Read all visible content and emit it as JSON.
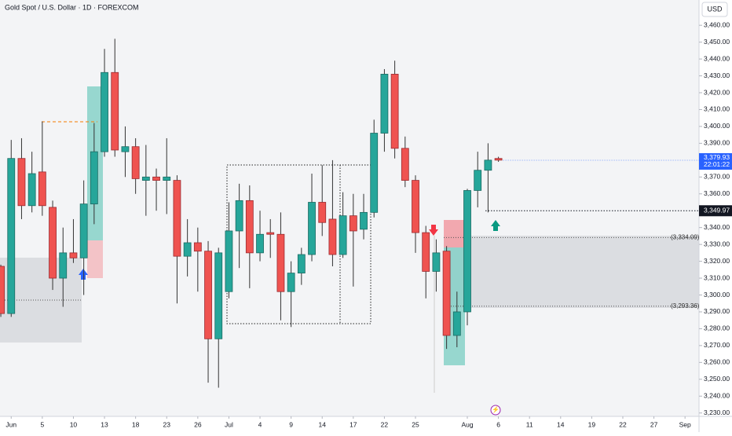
{
  "chart_data": {
    "type": "candlestick",
    "title": "Gold Spot / U.S. Dollar · 1D · FOREXCOM",
    "currency": "USD",
    "open": [
      3317,
      3289,
      3381,
      3353,
      3373,
      3352,
      3310,
      3325,
      3322,
      3354,
      3385,
      3432,
      3385,
      3388,
      3368,
      3370,
      3368,
      3368,
      3323,
      3331,
      3326,
      3274,
      3302,
      3338,
      3356,
      3325,
      3337,
      3336,
      3302,
      3313,
      3324,
      3355,
      3345,
      3324,
      3347,
      3339,
      3349,
      3396,
      3431,
      3387,
      3368,
      3337,
      3314,
      3326,
      3276,
      3290,
      3362,
      3374,
      3381
    ],
    "high": [
      3318,
      3392,
      3393,
      3385,
      3403,
      3356,
      3340,
      3345,
      3368,
      3402,
      3446,
      3452,
      3400,
      3393,
      3389,
      3375,
      3393,
      3371,
      3345,
      3340,
      3332,
      3328,
      3355,
      3366,
      3365,
      3350,
      3345,
      3349,
      3320,
      3328,
      3372,
      3377,
      3380,
      3361,
      3360,
      3360,
      3404,
      3434,
      3439,
      3394,
      3371,
      3341,
      3333,
      3329,
      3302,
      3363,
      3385,
      3390,
      3382
    ],
    "low": [
      3287,
      3287,
      3345,
      3349,
      3347,
      3303,
      3293,
      3319,
      3300,
      3342,
      3382,
      3382,
      3370,
      3360,
      3347,
      3350,
      3348,
      3295,
      3311,
      3302,
      3248,
      3245,
      3298,
      3316,
      3304,
      3320,
      3322,
      3285,
      3281,
      3306,
      3320,
      3335,
      3317,
      3322,
      3305,
      3333,
      3346,
      3385,
      3381,
      3364,
      3325,
      3298,
      3302,
      3268,
      3269,
      3282,
      3352,
      3349,
      3379
    ],
    "close": [
      3289,
      3381,
      3353,
      3372,
      3353,
      3310,
      3325,
      3322,
      3354,
      3385,
      3432,
      3386,
      3388,
      3369,
      3370,
      3368,
      3370,
      3323,
      3331,
      3326,
      3274,
      3325,
      3338,
      3356,
      3325,
      3336,
      3336,
      3302,
      3313,
      3324,
      3355,
      3343,
      3324,
      3347,
      3338,
      3349,
      3396,
      3431,
      3387,
      3368,
      3337,
      3314,
      3325,
      3276,
      3290,
      3362,
      3374,
      3380,
      3380
    ],
    "up_color": "#26a69a",
    "down_color": "#ef5350",
    "xlim": [
      -0.08,
      67.35
    ],
    "xticks": [
      {
        "value": 1,
        "label": "Jun"
      },
      {
        "value": 4,
        "label": "5"
      },
      {
        "value": 7,
        "label": "10"
      },
      {
        "value": 10,
        "label": "13"
      },
      {
        "value": 13,
        "label": "18"
      },
      {
        "value": 16,
        "label": "23"
      },
      {
        "value": 19,
        "label": "26"
      },
      {
        "value": 22,
        "label": "Jul"
      },
      {
        "value": 25,
        "label": "4"
      },
      {
        "value": 28,
        "label": "9"
      },
      {
        "value": 31,
        "label": "14"
      },
      {
        "value": 34,
        "label": "17"
      },
      {
        "value": 37,
        "label": "22"
      },
      {
        "value": 40,
        "label": "25"
      },
      {
        "value": 45,
        "label": "Aug"
      },
      {
        "value": 48,
        "label": "6"
      },
      {
        "value": 51,
        "label": "11"
      },
      {
        "value": 54,
        "label": "14"
      },
      {
        "value": 57,
        "label": "19"
      },
      {
        "value": 60,
        "label": "22"
      },
      {
        "value": 63,
        "label": "27"
      },
      {
        "value": 66,
        "label": "Sep"
      }
    ],
    "ylim": [
      3228,
      3475
    ],
    "yticks": [
      {
        "value": 3460,
        "label": "3,460.00"
      },
      {
        "value": 3450,
        "label": "3,450.00"
      },
      {
        "value": 3440,
        "label": "3,440.00"
      },
      {
        "value": 3430,
        "label": "3,430.00"
      },
      {
        "value": 3420,
        "label": "3,420.00"
      },
      {
        "value": 3410,
        "label": "3,410.00"
      },
      {
        "value": 3400,
        "label": "3,400.00"
      },
      {
        "value": 3390,
        "label": "3,390.00"
      },
      {
        "value": 3380,
        "label": "3,380.00"
      },
      {
        "value": 3370,
        "label": "3,370.00"
      },
      {
        "value": 3360,
        "label": "3,360.00"
      },
      {
        "value": 3350,
        "label": "3,350.00"
      },
      {
        "value": 3340,
        "label": "3,340.00"
      },
      {
        "value": 3330,
        "label": "3,330.00"
      },
      {
        "value": 3320,
        "label": "3,320.00"
      },
      {
        "value": 3310,
        "label": "3,310.00"
      },
      {
        "value": 3300,
        "label": "3,300.00"
      },
      {
        "value": 3290,
        "label": "3,290.00"
      },
      {
        "value": 3280,
        "label": "3,280.00"
      },
      {
        "value": 3270,
        "label": "3,270.00"
      },
      {
        "value": 3260,
        "label": "3,260.00"
      },
      {
        "value": 3250,
        "label": "3,250.00"
      },
      {
        "value": 3240,
        "label": "3,240.00"
      },
      {
        "value": 3230,
        "label": "3,230.00"
      }
    ],
    "last_price": {
      "value": 3379.93,
      "label": "3,379.93",
      "countdown": "22:01:22"
    },
    "level_price": {
      "value": 3349.97,
      "label": "3,349.97"
    },
    "levels": [
      {
        "value": 3334.09,
        "label": "(3,334.09)"
      },
      {
        "value": 3293.36,
        "label": "(3,293.36)"
      }
    ]
  }
}
